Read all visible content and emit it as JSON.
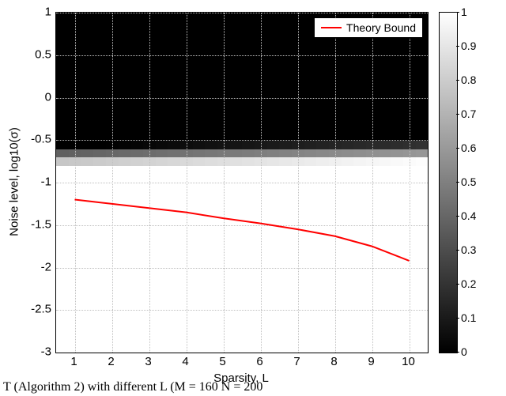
{
  "chart": {
    "type": "heatmap",
    "xlabel": "Sparsity, L",
    "ylabel": "Noise level, log10(σ)",
    "xlim": [
      0.5,
      10.5
    ],
    "ylim": [
      -3,
      1
    ],
    "x_ticks": [
      1,
      2,
      3,
      4,
      5,
      6,
      7,
      8,
      9,
      10
    ],
    "y_ticks": [
      -3,
      -2.5,
      -2,
      -1.5,
      -1,
      -0.5,
      0,
      0.5,
      1
    ],
    "x_tick_labels": [
      "1",
      "2",
      "3",
      "4",
      "5",
      "6",
      "7",
      "8",
      "9",
      "10"
    ],
    "y_tick_labels": [
      "-3",
      "-2.5",
      "-2",
      "-1.5",
      "-1",
      "-0.5",
      "0",
      "0.5",
      "1"
    ],
    "heatmap": {
      "x_res": 30,
      "y_res": 40,
      "cmap_black": "#000000",
      "cmap_white": "#ffffff",
      "boundary_y": -0.65,
      "transition_width": 0.25,
      "transition_colors_count": 6
    },
    "theory_curve": {
      "color": "#ff0000",
      "width": 2,
      "points": [
        [
          1.0,
          -1.2
        ],
        [
          2.0,
          -1.25
        ],
        [
          3.0,
          -1.3
        ],
        [
          4.0,
          -1.35
        ],
        [
          5.0,
          -1.42
        ],
        [
          6.0,
          -1.48
        ],
        [
          7.0,
          -1.55
        ],
        [
          8.0,
          -1.63
        ],
        [
          9.0,
          -1.75
        ],
        [
          10.0,
          -1.92
        ]
      ]
    },
    "legend": {
      "label": "Theory Bound"
    },
    "grid_color": "#c0c0c0",
    "background_black": "#000000",
    "plot_border_color": "#000000"
  },
  "colorbar": {
    "ticks": [
      0,
      0.1,
      0.2,
      0.3,
      0.4,
      0.5,
      0.6,
      0.7,
      0.8,
      0.9,
      1
    ],
    "tick_labels": [
      "0",
      "0.1",
      "0.2",
      "0.3",
      "0.4",
      "0.5",
      "0.6",
      "0.7",
      "0.8",
      "0.9",
      "1"
    ],
    "gradient_from": "#000000",
    "gradient_to": "#ffffff"
  },
  "caption": "T (Algorithm 2) with different L (M = 160  N = 200"
}
